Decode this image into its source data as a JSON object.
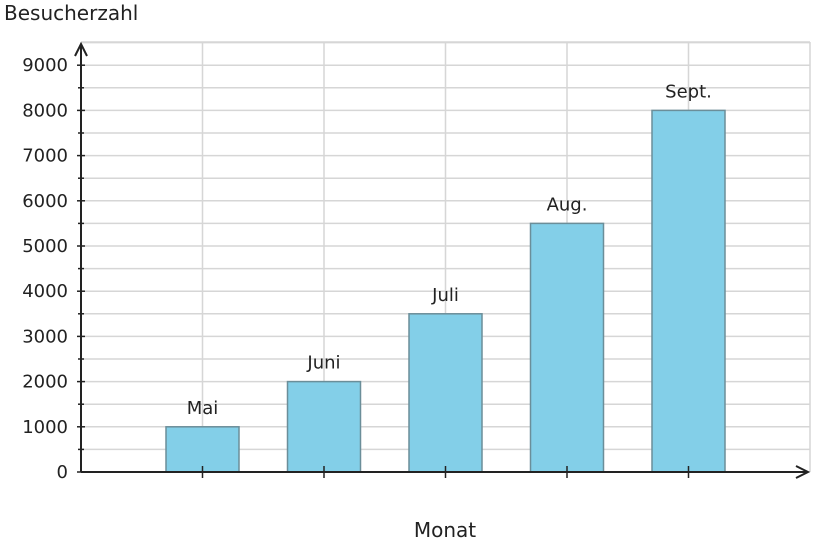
{
  "chart_data": {
    "type": "bar",
    "ylabel": "Besucherzahl",
    "xlabel": "Monat",
    "categories": [
      "Mai",
      "Juni",
      "Juli",
      "Aug.",
      "Sept."
    ],
    "values": [
      1000,
      2000,
      3500,
      5500,
      8000
    ],
    "ylim": [
      0,
      9000
    ],
    "yticks": [
      "0",
      "1000",
      "2000",
      "3000",
      "4000",
      "5000",
      "6000",
      "7000",
      "8000",
      "9000"
    ],
    "grid": true,
    "bar_color": "#83cfe8",
    "bar_edge_color": "#6b8e99"
  }
}
